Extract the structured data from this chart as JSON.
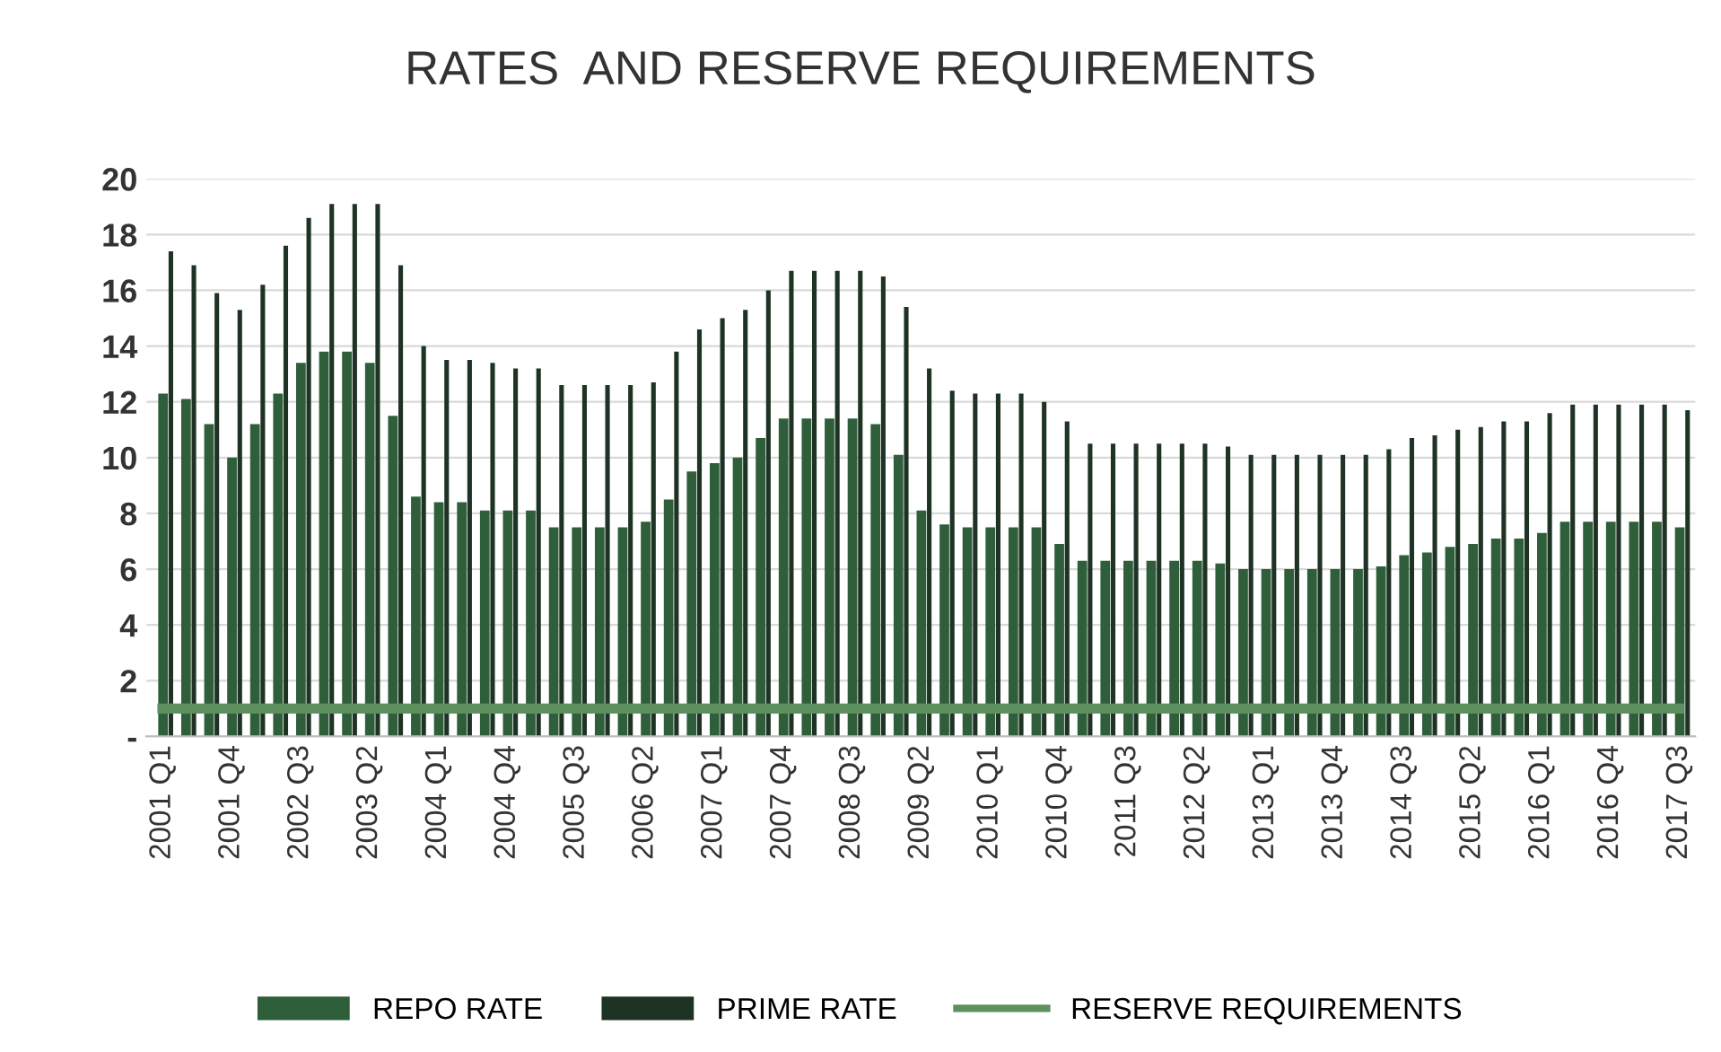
{
  "chart_data": {
    "type": "bar",
    "title": "RATES  AND RESERVE REQUIREMENTS",
    "categories": [
      "2001 Q1",
      null,
      null,
      "2001 Q4",
      null,
      null,
      "2002 Q3",
      null,
      null,
      "2003 Q2",
      null,
      null,
      "2004 Q1",
      null,
      null,
      "2004 Q4",
      null,
      null,
      "2005 Q3",
      null,
      null,
      "2006 Q2",
      null,
      null,
      "2007 Q1",
      null,
      null,
      "2007 Q4",
      null,
      null,
      "2008 Q3",
      null,
      null,
      "2009 Q2",
      null,
      null,
      "2010 Q1",
      null,
      null,
      "2010 Q4",
      null,
      null,
      "2011 Q3",
      null,
      null,
      "2012 Q2",
      null,
      null,
      "2013 Q1",
      null,
      null,
      "2013 Q4",
      null,
      null,
      "2014 Q3",
      null,
      null,
      "2015 Q2",
      null,
      null,
      "2016 Q1",
      null,
      null,
      "2016 Q4",
      null,
      null,
      "2017 Q3"
    ],
    "series": [
      {
        "name": "REPO RATE",
        "color": "#2f5e3a",
        "values": [
          12.3,
          12.1,
          11.2,
          10.0,
          11.2,
          12.3,
          13.4,
          13.8,
          13.8,
          13.4,
          11.5,
          8.6,
          8.4,
          8.4,
          8.1,
          8.1,
          8.1,
          7.5,
          7.5,
          7.5,
          7.5,
          7.7,
          8.5,
          9.5,
          9.8,
          10.0,
          10.7,
          11.4,
          11.4,
          11.4,
          11.4,
          11.2,
          10.1,
          8.1,
          7.6,
          7.5,
          7.5,
          7.5,
          7.5,
          6.9,
          6.3,
          6.3,
          6.3,
          6.3,
          6.3,
          6.3,
          6.2,
          6.0,
          6.0,
          6.0,
          6.0,
          6.0,
          6.0,
          6.1,
          6.5,
          6.6,
          6.8,
          6.9,
          7.1,
          7.1,
          7.3,
          7.7,
          7.7,
          7.7,
          7.7,
          7.7,
          7.5
        ]
      },
      {
        "name": "PRIME RATE",
        "color": "#1f3325",
        "values": [
          17.4,
          16.9,
          15.9,
          15.3,
          16.2,
          17.6,
          18.6,
          19.1,
          19.1,
          19.1,
          16.9,
          14.0,
          13.5,
          13.5,
          13.4,
          13.2,
          13.2,
          12.6,
          12.6,
          12.6,
          12.6,
          12.7,
          13.8,
          14.6,
          15.0,
          15.3,
          16.0,
          16.7,
          16.7,
          16.7,
          16.7,
          16.5,
          15.4,
          13.2,
          12.4,
          12.3,
          12.3,
          12.3,
          12.0,
          11.3,
          10.5,
          10.5,
          10.5,
          10.5,
          10.5,
          10.5,
          10.4,
          10.1,
          10.1,
          10.1,
          10.1,
          10.1,
          10.1,
          10.3,
          10.7,
          10.8,
          11.0,
          11.1,
          11.3,
          11.3,
          11.6,
          11.9,
          11.9,
          11.9,
          11.9,
          11.9,
          11.7
        ]
      },
      {
        "name": "RESERVE REQUIREMENTS",
        "type": "line",
        "color": "#5e8f5e",
        "values": [
          1.0,
          1.0,
          1.0,
          1.0,
          1.0,
          1.0,
          1.0,
          1.0,
          1.0,
          1.0,
          1.0,
          1.0,
          1.0,
          1.0,
          1.0,
          1.0,
          1.0,
          1.0,
          1.0,
          1.0,
          1.0,
          1.0,
          1.0,
          1.0,
          1.0,
          1.0,
          1.0,
          1.0,
          1.0,
          1.0,
          1.0,
          1.0,
          1.0,
          1.0,
          1.0,
          1.0,
          1.0,
          1.0,
          1.0,
          1.0,
          1.0,
          1.0,
          1.0,
          1.0,
          1.0,
          1.0,
          1.0,
          1.0,
          1.0,
          1.0,
          1.0,
          1.0,
          1.0,
          1.0,
          1.0,
          1.0,
          1.0,
          1.0,
          1.0,
          1.0,
          1.0,
          1.0,
          1.0,
          1.0,
          1.0,
          1.0,
          1.0
        ]
      }
    ],
    "ylim": [
      0,
      20
    ],
    "yticks": [
      {
        "value": 0,
        "label": "-"
      },
      2,
      4,
      6,
      8,
      10,
      12,
      14,
      16,
      18,
      20
    ],
    "grid": "y",
    "legend": "bottom"
  }
}
